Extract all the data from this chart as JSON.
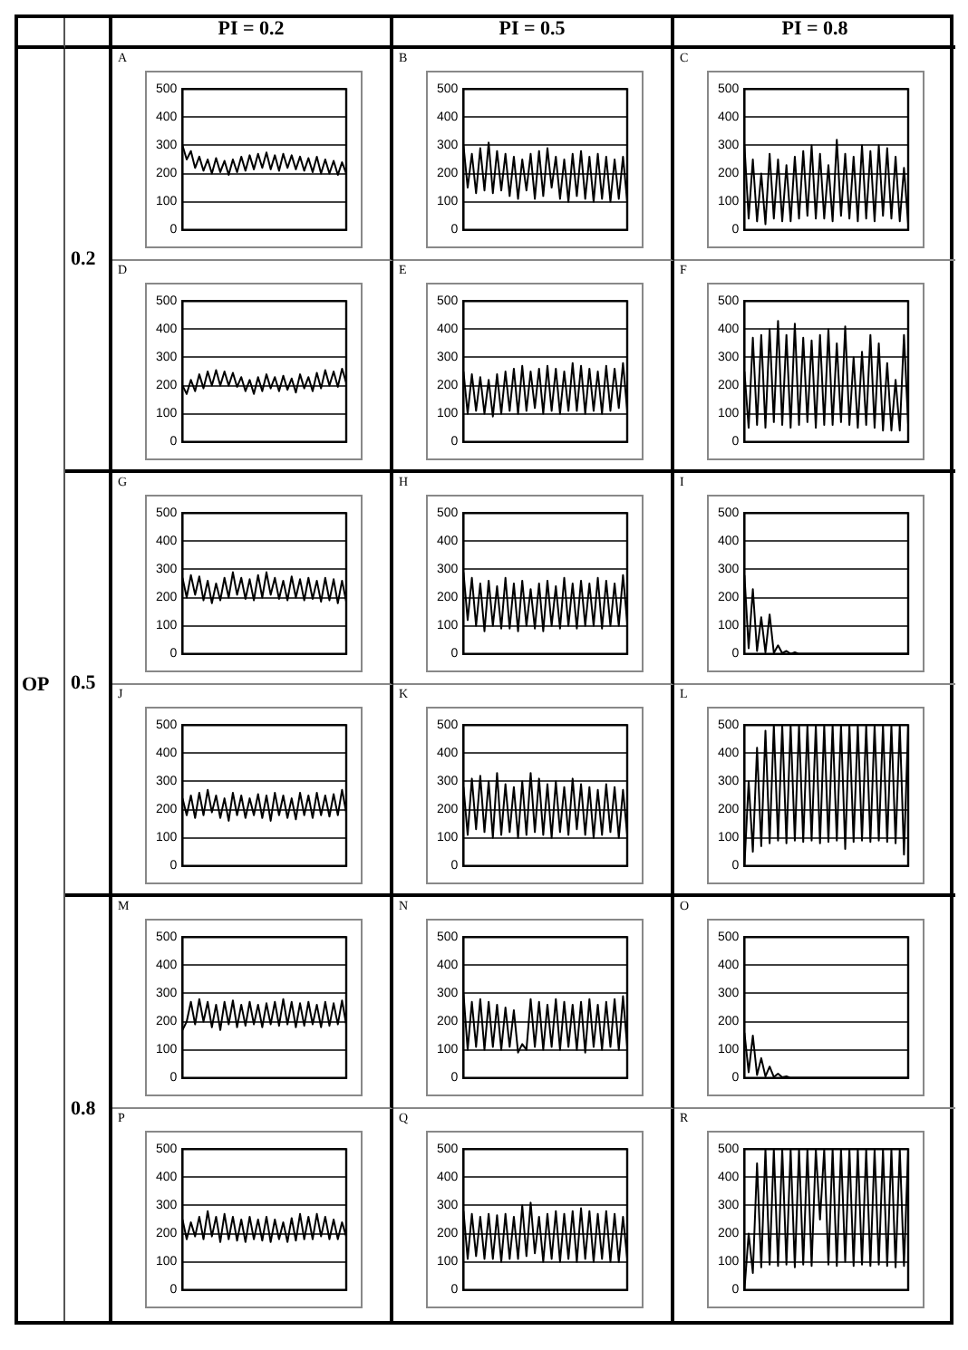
{
  "chart_data": [
    {
      "type": "line",
      "title": "A",
      "categories": [
        null,
        null,
        null,
        null,
        null,
        null,
        null,
        null,
        null,
        null,
        null,
        null,
        null,
        null,
        null,
        null,
        null,
        null,
        null,
        null,
        null,
        null,
        null,
        null,
        null,
        null,
        null,
        null,
        null,
        null,
        null,
        null,
        null,
        null,
        null,
        null,
        null,
        null,
        null,
        null
      ],
      "values": [
        300,
        250,
        280,
        220,
        260,
        210,
        250,
        200,
        255,
        205,
        245,
        195,
        250,
        205,
        260,
        210,
        265,
        215,
        270,
        220,
        275,
        215,
        265,
        210,
        270,
        220,
        265,
        215,
        260,
        210,
        255,
        205,
        260,
        200,
        250,
        200,
        245,
        195,
        240,
        200
      ],
      "color": "#000000",
      "ylim": [
        0,
        500
      ],
      "yticks": [
        0,
        100,
        200,
        300,
        400,
        500
      ],
      "grid": "y",
      "tick_labels": "y",
      "annotations": [
        "PI = 0.2",
        "PI = 0.5",
        "PI = 0.8",
        "OP",
        "0.2",
        "0.5",
        "0.8"
      ]
    },
    {
      "type": "line",
      "title": "B",
      "categories": [
        null,
        null,
        null,
        null,
        null,
        null,
        null,
        null,
        null,
        null,
        null,
        null,
        null,
        null,
        null,
        null,
        null,
        null,
        null,
        null,
        null,
        null,
        null,
        null,
        null,
        null,
        null,
        null,
        null,
        null,
        null,
        null,
        null,
        null,
        null,
        null,
        null,
        null,
        null,
        null
      ],
      "values": [
        300,
        150,
        270,
        130,
        290,
        140,
        310,
        130,
        280,
        140,
        270,
        120,
        260,
        110,
        250,
        140,
        270,
        110,
        280,
        120,
        290,
        150,
        260,
        110,
        250,
        100,
        270,
        120,
        280,
        110,
        260,
        100,
        270,
        110,
        260,
        100,
        250,
        110,
        260,
        100
      ],
      "color": "#000000",
      "ylim": [
        0,
        500
      ],
      "yticks": [
        0,
        100,
        200,
        300,
        400,
        500
      ],
      "grid": "y",
      "tick_labels": "y"
    },
    {
      "type": "line",
      "title": "C",
      "categories": [
        null,
        null,
        null,
        null,
        null,
        null,
        null,
        null,
        null,
        null,
        null,
        null,
        null,
        null,
        null,
        null,
        null,
        null,
        null,
        null,
        null,
        null,
        null,
        null,
        null,
        null,
        null,
        null,
        null,
        null,
        null,
        null,
        null,
        null,
        null,
        null,
        null,
        null,
        null,
        null
      ],
      "values": [
        300,
        40,
        250,
        30,
        200,
        20,
        270,
        40,
        250,
        30,
        230,
        30,
        260,
        40,
        280,
        50,
        300,
        40,
        270,
        40,
        230,
        30,
        320,
        50,
        270,
        40,
        260,
        30,
        300,
        40,
        280,
        30,
        300,
        50,
        290,
        40,
        260,
        30,
        220,
        20
      ],
      "color": "#000000",
      "ylim": [
        0,
        500
      ],
      "yticks": [
        0,
        100,
        200,
        300,
        400,
        500
      ],
      "grid": "y",
      "tick_labels": "y"
    },
    {
      "type": "line",
      "title": "D",
      "categories": [
        null,
        null,
        null,
        null,
        null,
        null,
        null,
        null,
        null,
        null,
        null,
        null,
        null,
        null,
        null,
        null,
        null,
        null,
        null,
        null,
        null,
        null,
        null,
        null,
        null,
        null,
        null,
        null,
        null,
        null,
        null,
        null,
        null,
        null,
        null,
        null,
        null,
        null,
        null,
        null
      ],
      "values": [
        200,
        170,
        220,
        180,
        240,
        190,
        250,
        200,
        255,
        200,
        250,
        200,
        245,
        195,
        230,
        180,
        220,
        170,
        230,
        180,
        240,
        190,
        230,
        180,
        235,
        185,
        225,
        175,
        240,
        190,
        230,
        180,
        245,
        190,
        255,
        200,
        250,
        195,
        260,
        210
      ],
      "color": "#000000",
      "ylim": [
        0,
        500
      ],
      "yticks": [
        0,
        100,
        200,
        300,
        400,
        500
      ],
      "grid": "y",
      "tick_labels": "y"
    },
    {
      "type": "line",
      "title": "E",
      "categories": [
        null,
        null,
        null,
        null,
        null,
        null,
        null,
        null,
        null,
        null,
        null,
        null,
        null,
        null,
        null,
        null,
        null,
        null,
        null,
        null,
        null,
        null,
        null,
        null,
        null,
        null,
        null,
        null,
        null,
        null,
        null,
        null,
        null,
        null,
        null,
        null,
        null,
        null,
        null,
        null
      ],
      "values": [
        250,
        100,
        240,
        110,
        230,
        100,
        220,
        90,
        240,
        100,
        250,
        110,
        260,
        100,
        270,
        110,
        250,
        120,
        260,
        100,
        270,
        110,
        260,
        100,
        250,
        110,
        280,
        110,
        270,
        100,
        260,
        110,
        250,
        100,
        270,
        110,
        260,
        120,
        280,
        110
      ],
      "color": "#000000",
      "ylim": [
        0,
        500
      ],
      "yticks": [
        0,
        100,
        200,
        300,
        400,
        500
      ],
      "grid": "y",
      "tick_labels": "y"
    },
    {
      "type": "line",
      "title": "F",
      "categories": [
        null,
        null,
        null,
        null,
        null,
        null,
        null,
        null,
        null,
        null,
        null,
        null,
        null,
        null,
        null,
        null,
        null,
        null,
        null,
        null,
        null,
        null,
        null,
        null,
        null,
        null,
        null,
        null,
        null,
        null,
        null,
        null,
        null,
        null,
        null,
        null,
        null,
        null,
        null,
        null
      ],
      "values": [
        250,
        50,
        370,
        60,
        380,
        50,
        400,
        70,
        430,
        60,
        380,
        50,
        420,
        60,
        370,
        70,
        360,
        50,
        380,
        60,
        400,
        60,
        350,
        70,
        410,
        60,
        300,
        50,
        320,
        60,
        380,
        50,
        350,
        40,
        280,
        40,
        220,
        40,
        380,
        60
      ],
      "color": "#000000",
      "ylim": [
        0,
        500
      ],
      "yticks": [
        0,
        100,
        200,
        300,
        400,
        500
      ],
      "grid": "y",
      "tick_labels": "y"
    },
    {
      "type": "line",
      "title": "G",
      "categories": [
        null,
        null,
        null,
        null,
        null,
        null,
        null,
        null,
        null,
        null,
        null,
        null,
        null,
        null,
        null,
        null,
        null,
        null,
        null,
        null,
        null,
        null,
        null,
        null,
        null,
        null,
        null,
        null,
        null,
        null,
        null,
        null,
        null,
        null,
        null,
        null,
        null,
        null,
        null,
        null
      ],
      "values": [
        270,
        200,
        280,
        210,
        275,
        190,
        260,
        180,
        250,
        190,
        270,
        200,
        290,
        210,
        270,
        195,
        265,
        190,
        280,
        200,
        290,
        210,
        270,
        195,
        260,
        190,
        275,
        200,
        265,
        190,
        270,
        195,
        260,
        185,
        270,
        190,
        265,
        180,
        260,
        185
      ],
      "color": "#000000",
      "ylim": [
        0,
        500
      ],
      "yticks": [
        0,
        100,
        200,
        300,
        400,
        500
      ],
      "grid": "y",
      "tick_labels": "y"
    },
    {
      "type": "line",
      "title": "H",
      "categories": [
        null,
        null,
        null,
        null,
        null,
        null,
        null,
        null,
        null,
        null,
        null,
        null,
        null,
        null,
        null,
        null,
        null,
        null,
        null,
        null,
        null,
        null,
        null,
        null,
        null,
        null,
        null,
        null,
        null,
        null,
        null,
        null,
        null,
        null,
        null,
        null,
        null,
        null,
        null,
        null
      ],
      "values": [
        290,
        120,
        270,
        100,
        250,
        80,
        260,
        100,
        240,
        90,
        270,
        90,
        250,
        80,
        260,
        100,
        230,
        90,
        250,
        80,
        260,
        100,
        240,
        90,
        270,
        100,
        250,
        90,
        260,
        100,
        250,
        100,
        270,
        90,
        260,
        100,
        250,
        100,
        280,
        110
      ],
      "color": "#000000",
      "ylim": [
        0,
        500
      ],
      "yticks": [
        0,
        100,
        200,
        300,
        400,
        500
      ],
      "grid": "y",
      "tick_labels": "y"
    },
    {
      "type": "line",
      "title": "I",
      "categories": [
        null,
        null,
        null,
        null,
        null,
        null,
        null,
        null,
        null,
        null,
        null,
        null,
        null,
        null,
        null,
        null,
        null,
        null,
        null,
        null,
        null,
        null,
        null,
        null,
        null,
        null,
        null,
        null,
        null,
        null,
        null,
        null,
        null,
        null,
        null,
        null,
        null,
        null,
        null,
        null
      ],
      "values": [
        280,
        20,
        230,
        10,
        130,
        5,
        140,
        3,
        30,
        2,
        10,
        0,
        5,
        0,
        0,
        0,
        0,
        0,
        0,
        0,
        0,
        0,
        0,
        0,
        0,
        0,
        0,
        0,
        0,
        0,
        0,
        0,
        0,
        0,
        0,
        0,
        0,
        0,
        0,
        0
      ],
      "color": "#000000",
      "ylim": [
        0,
        500
      ],
      "yticks": [
        0,
        100,
        200,
        300,
        400,
        500
      ],
      "grid": "y",
      "tick_labels": "y"
    },
    {
      "type": "line",
      "title": "J",
      "categories": [
        null,
        null,
        null,
        null,
        null,
        null,
        null,
        null,
        null,
        null,
        null,
        null,
        null,
        null,
        null,
        null,
        null,
        null,
        null,
        null,
        null,
        null,
        null,
        null,
        null,
        null,
        null,
        null,
        null,
        null,
        null,
        null,
        null,
        null,
        null,
        null,
        null,
        null,
        null,
        null
      ],
      "values": [
        240,
        180,
        250,
        170,
        260,
        180,
        270,
        190,
        250,
        170,
        240,
        160,
        260,
        180,
        250,
        170,
        240,
        180,
        255,
        170,
        250,
        160,
        260,
        180,
        250,
        170,
        240,
        165,
        260,
        180,
        250,
        170,
        260,
        180,
        250,
        175,
        255,
        180,
        270,
        190
      ],
      "color": "#000000",
      "ylim": [
        0,
        500
      ],
      "yticks": [
        0,
        100,
        200,
        300,
        400,
        500
      ],
      "grid": "y",
      "tick_labels": "y"
    },
    {
      "type": "line",
      "title": "K",
      "categories": [
        null,
        null,
        null,
        null,
        null,
        null,
        null,
        null,
        null,
        null,
        null,
        null,
        null,
        null,
        null,
        null,
        null,
        null,
        null,
        null,
        null,
        null,
        null,
        null,
        null,
        null,
        null,
        null,
        null,
        null,
        null,
        null,
        null,
        null,
        null,
        null,
        null,
        null,
        null,
        null
      ],
      "values": [
        280,
        110,
        310,
        130,
        320,
        120,
        300,
        100,
        330,
        110,
        290,
        120,
        280,
        100,
        300,
        110,
        330,
        120,
        310,
        110,
        290,
        100,
        300,
        120,
        280,
        110,
        310,
        130,
        290,
        110,
        280,
        100,
        270,
        110,
        290,
        120,
        280,
        100,
        270,
        110
      ],
      "color": "#000000",
      "ylim": [
        0,
        500
      ],
      "yticks": [
        0,
        100,
        200,
        300,
        400,
        500
      ],
      "grid": "y",
      "tick_labels": "y"
    },
    {
      "type": "line",
      "title": "L",
      "categories": [
        null,
        null,
        null,
        null,
        null,
        null,
        null,
        null,
        null,
        null,
        null,
        null,
        null,
        null,
        null,
        null,
        null,
        null,
        null,
        null,
        null,
        null,
        null,
        null,
        null,
        null,
        null,
        null,
        null,
        null,
        null,
        null,
        null,
        null,
        null,
        null,
        null,
        null,
        null,
        null
      ],
      "values": [
        0,
        300,
        50,
        420,
        70,
        480,
        80,
        500,
        90,
        500,
        80,
        500,
        90,
        500,
        85,
        500,
        90,
        500,
        80,
        500,
        85,
        500,
        90,
        500,
        60,
        500,
        85,
        500,
        90,
        500,
        85,
        500,
        90,
        500,
        85,
        500,
        80,
        500,
        40,
        500
      ],
      "color": "#000000",
      "ylim": [
        0,
        500
      ],
      "yticks": [
        0,
        100,
        200,
        300,
        400,
        500
      ],
      "grid": "y",
      "tick_labels": "y"
    },
    {
      "type": "line",
      "title": "M",
      "categories": [
        null,
        null,
        null,
        null,
        null,
        null,
        null,
        null,
        null,
        null,
        null,
        null,
        null,
        null,
        null,
        null,
        null,
        null,
        null,
        null,
        null,
        null,
        null,
        null,
        null,
        null,
        null,
        null,
        null,
        null,
        null,
        null,
        null,
        null,
        null,
        null,
        null,
        null,
        null,
        null
      ],
      "values": [
        170,
        200,
        270,
        190,
        280,
        200,
        270,
        180,
        260,
        170,
        270,
        190,
        275,
        180,
        260,
        185,
        270,
        190,
        260,
        180,
        265,
        190,
        270,
        185,
        280,
        190,
        270,
        180,
        265,
        185,
        270,
        190,
        260,
        180,
        270,
        185,
        265,
        190,
        275,
        190
      ],
      "color": "#000000",
      "ylim": [
        0,
        500
      ],
      "yticks": [
        0,
        100,
        200,
        300,
        400,
        500
      ],
      "grid": "y",
      "tick_labels": "y"
    },
    {
      "type": "line",
      "title": "N",
      "categories": [
        null,
        null,
        null,
        null,
        null,
        null,
        null,
        null,
        null,
        null,
        null,
        null,
        null,
        null,
        null,
        null,
        null,
        null,
        null,
        null,
        null,
        null,
        null,
        null,
        null,
        null,
        null,
        null,
        null,
        null,
        null,
        null,
        null,
        null,
        null,
        null,
        null,
        null,
        null,
        null
      ],
      "values": [
        300,
        100,
        270,
        110,
        280,
        100,
        270,
        110,
        260,
        100,
        250,
        110,
        240,
        90,
        120,
        100,
        280,
        110,
        270,
        100,
        260,
        110,
        280,
        100,
        270,
        110,
        260,
        100,
        270,
        90,
        280,
        110,
        260,
        100,
        270,
        110,
        280,
        100,
        290,
        110
      ],
      "color": "#000000",
      "ylim": [
        0,
        500
      ],
      "yticks": [
        0,
        100,
        200,
        300,
        400,
        500
      ],
      "grid": "y",
      "tick_labels": "y"
    },
    {
      "type": "line",
      "title": "O",
      "categories": [
        null,
        null,
        null,
        null,
        null,
        null,
        null,
        null,
        null,
        null,
        null,
        null,
        null,
        null,
        null,
        null,
        null,
        null,
        null,
        null,
        null,
        null,
        null,
        null,
        null,
        null,
        null,
        null,
        null,
        null,
        null,
        null,
        null,
        null,
        null,
        null,
        null,
        null,
        null,
        null
      ],
      "values": [
        160,
        20,
        150,
        10,
        70,
        5,
        40,
        3,
        15,
        2,
        5,
        0,
        0,
        0,
        0,
        0,
        0,
        0,
        0,
        0,
        0,
        0,
        0,
        0,
        0,
        0,
        0,
        0,
        0,
        0,
        0,
        0,
        0,
        0,
        0,
        0,
        0,
        0,
        0,
        0
      ],
      "color": "#000000",
      "ylim": [
        0,
        500
      ],
      "yticks": [
        0,
        100,
        200,
        300,
        400,
        500
      ],
      "grid": "y",
      "tick_labels": "y"
    },
    {
      "type": "line",
      "title": "P",
      "categories": [
        null,
        null,
        null,
        null,
        null,
        null,
        null,
        null,
        null,
        null,
        null,
        null,
        null,
        null,
        null,
        null,
        null,
        null,
        null,
        null,
        null,
        null,
        null,
        null,
        null,
        null,
        null,
        null,
        null,
        null,
        null,
        null,
        null,
        null,
        null,
        null,
        null,
        null,
        null,
        null
      ],
      "values": [
        250,
        180,
        240,
        190,
        260,
        180,
        280,
        190,
        260,
        170,
        270,
        180,
        260,
        175,
        250,
        170,
        260,
        180,
        250,
        175,
        260,
        170,
        250,
        180,
        240,
        170,
        255,
        175,
        270,
        180,
        260,
        180,
        270,
        190,
        260,
        180,
        250,
        180,
        240,
        190
      ],
      "color": "#000000",
      "ylim": [
        0,
        500
      ],
      "yticks": [
        0,
        100,
        200,
        300,
        400,
        500
      ],
      "grid": "y",
      "tick_labels": "y"
    },
    {
      "type": "line",
      "title": "Q",
      "categories": [
        null,
        null,
        null,
        null,
        null,
        null,
        null,
        null,
        null,
        null,
        null,
        null,
        null,
        null,
        null,
        null,
        null,
        null,
        null,
        null,
        null,
        null,
        null,
        null,
        null,
        null,
        null,
        null,
        null,
        null,
        null,
        null,
        null,
        null,
        null,
        null,
        null,
        null,
        null,
        null
      ],
      "values": [
        280,
        110,
        270,
        120,
        260,
        110,
        270,
        110,
        265,
        100,
        270,
        110,
        260,
        110,
        300,
        120,
        310,
        130,
        260,
        100,
        270,
        110,
        280,
        100,
        270,
        110,
        280,
        100,
        290,
        110,
        280,
        100,
        270,
        110,
        280,
        100,
        270,
        100,
        260,
        110
      ],
      "color": "#000000",
      "ylim": [
        0,
        500
      ],
      "yticks": [
        0,
        100,
        200,
        300,
        400,
        500
      ],
      "grid": "y",
      "tick_labels": "y"
    },
    {
      "type": "line",
      "title": "R",
      "categories": [
        null,
        null,
        null,
        null,
        null,
        null,
        null,
        null,
        null,
        null,
        null,
        null,
        null,
        null,
        null,
        null,
        null,
        null,
        null,
        null,
        null,
        null,
        null,
        null,
        null,
        null,
        null,
        null,
        null,
        null,
        null,
        null,
        null,
        null,
        null,
        null,
        null,
        null,
        null,
        null
      ],
      "values": [
        0,
        200,
        60,
        450,
        80,
        500,
        90,
        500,
        85,
        500,
        90,
        500,
        80,
        500,
        90,
        500,
        85,
        500,
        250,
        500,
        90,
        500,
        85,
        500,
        100,
        500,
        85,
        500,
        90,
        500,
        85,
        500,
        90,
        500,
        85,
        500,
        80,
        500,
        85,
        500
      ],
      "color": "#000000",
      "ylim": [
        0,
        500
      ],
      "yticks": [
        0,
        100,
        200,
        300,
        400,
        500
      ],
      "grid": "y",
      "tick_labels": "y"
    }
  ]
}
